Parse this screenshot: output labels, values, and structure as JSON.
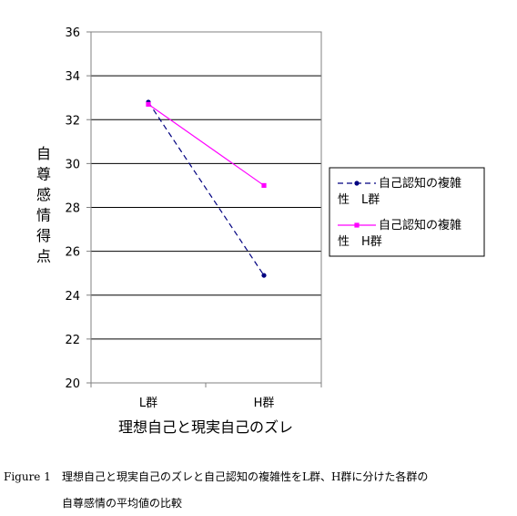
{
  "chart_data": {
    "type": "line",
    "categories": [
      "L群",
      "H群"
    ],
    "series": [
      {
        "name": "自己認知の複雑性　L群",
        "values": [
          32.8,
          24.9
        ],
        "color": "#000080",
        "marker": "circle",
        "dash": "dashed"
      },
      {
        "name": "自己認知の複雑性　H群",
        "values": [
          32.7,
          29.0
        ],
        "color": "#ff00ff",
        "marker": "square",
        "dash": "solid"
      }
    ],
    "legend_lines": [
      [
        "自己認知の複雑",
        "性　L群"
      ],
      [
        "自己認知の複雑",
        "性　H群"
      ]
    ],
    "xlabel": "理想自己と現実自己のズレ",
    "ylabel": "自尊感情得点",
    "ylim": [
      20,
      36
    ],
    "yticks": [
      20,
      22,
      24,
      26,
      28,
      30,
      32,
      34,
      36
    ],
    "grid": "horizontal",
    "legend_position": "right"
  },
  "caption": {
    "prefix": "Figure 1",
    "line1": "理想自己と現実自己のズレと自己認知の複雑性をL群、H群に分けた各群の",
    "line2": "自尊感情の平均値の比較"
  }
}
